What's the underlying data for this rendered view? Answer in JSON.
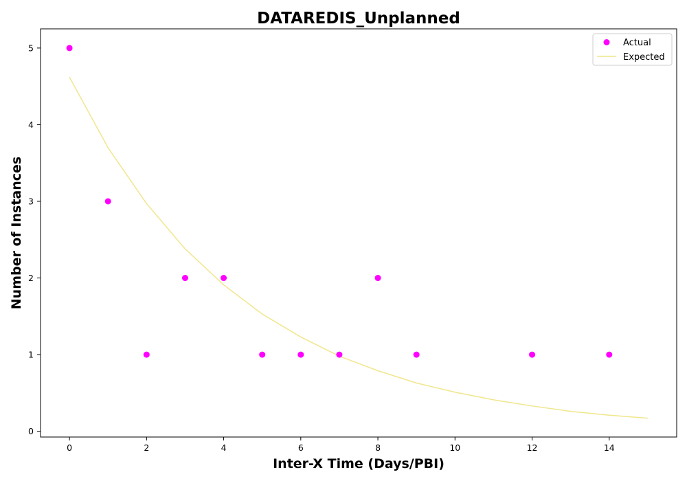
{
  "chart_data": {
    "type": "scatter",
    "title": "DATAREDIS_Unplanned",
    "xlabel": "Inter-X Time (Days/PBI)",
    "ylabel": "Number of Instances",
    "xlim": [
      -0.75,
      15.75
    ],
    "ylim": [
      -0.075,
      5.25
    ],
    "xticks": [
      0,
      2,
      4,
      6,
      8,
      10,
      12,
      14
    ],
    "yticks": [
      0,
      1,
      2,
      3,
      4,
      5
    ],
    "grid": false,
    "legend_position": "top-right",
    "series": [
      {
        "name": "Actual",
        "type": "scatter",
        "color": "#ff00ff",
        "x": [
          0,
          1,
          2,
          3,
          4,
          5,
          6,
          7,
          8,
          9,
          12,
          14
        ],
        "y": [
          5,
          3,
          1,
          2,
          2,
          1,
          1,
          1,
          2,
          1,
          1,
          1
        ]
      },
      {
        "name": "Expected",
        "type": "line",
        "color": "#f0e68c",
        "x": [
          0,
          1,
          2,
          3,
          4,
          5,
          6,
          7,
          8,
          9,
          10,
          11,
          12,
          13,
          14,
          15
        ],
        "y": [
          4.62,
          3.7,
          2.97,
          2.38,
          1.91,
          1.53,
          1.23,
          0.98,
          0.79,
          0.63,
          0.51,
          0.41,
          0.33,
          0.26,
          0.21,
          0.17
        ]
      }
    ]
  }
}
